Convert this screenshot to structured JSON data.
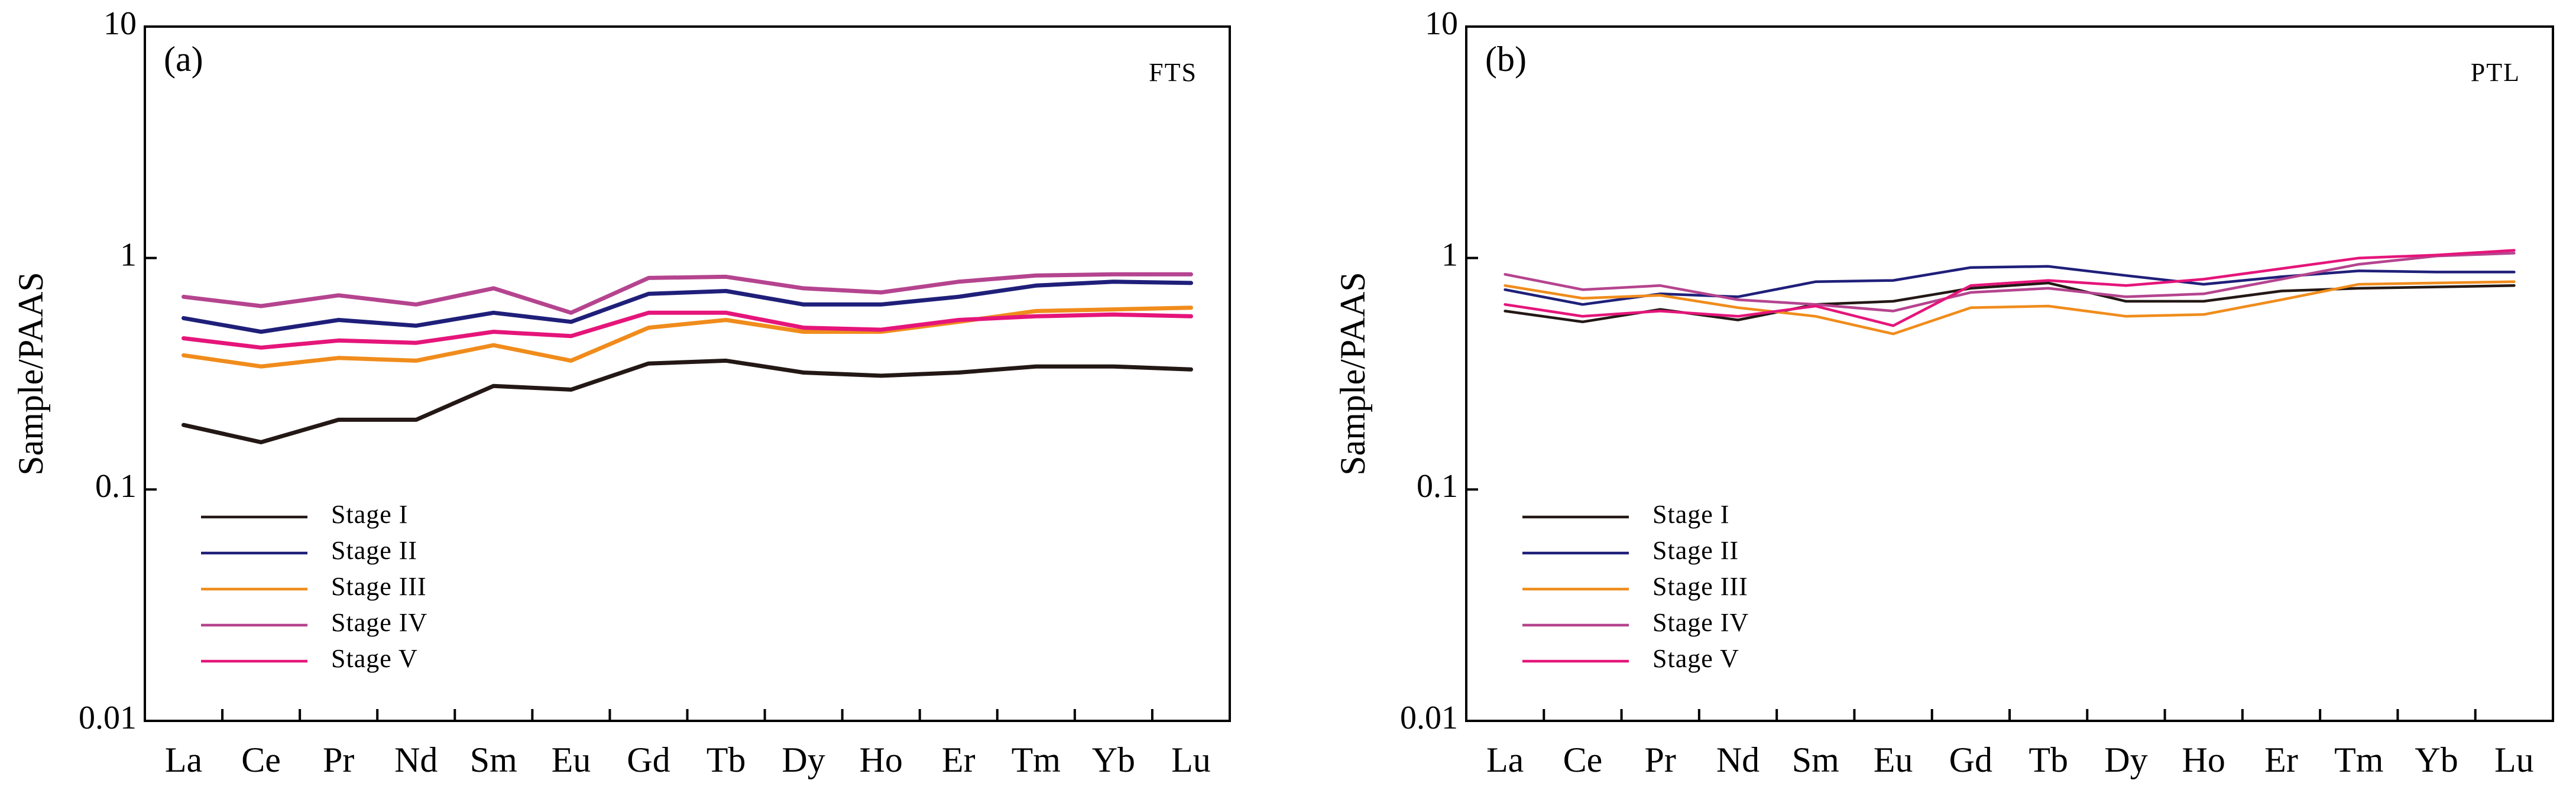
{
  "chart_data": [
    {
      "type": "line",
      "panel_label": "(a)",
      "tag": "FTS",
      "title": "",
      "xlabel": "",
      "ylabel": "Sample/PAAS",
      "yscale": "log",
      "ylim": [
        0.01,
        10
      ],
      "yticks": [
        "0.01",
        "0.1",
        "1",
        "10"
      ],
      "categories": [
        "La",
        "Ce",
        "Pr",
        "Nd",
        "Sm",
        "Eu",
        "Gd",
        "Tb",
        "Dy",
        "Ho",
        "Er",
        "Tm",
        "Yb",
        "Lu"
      ],
      "legend_position": "lower-left",
      "series": [
        {
          "name": "Stage I",
          "color": "#231815",
          "values": [
            0.19,
            0.16,
            0.2,
            0.2,
            0.28,
            0.27,
            0.35,
            0.36,
            0.32,
            0.31,
            0.32,
            0.34,
            0.34,
            0.33
          ]
        },
        {
          "name": "Stage II",
          "color": "#1f1f7a",
          "values": [
            0.55,
            0.48,
            0.54,
            0.51,
            0.58,
            0.53,
            0.7,
            0.72,
            0.63,
            0.63,
            0.68,
            0.76,
            0.79,
            0.78
          ]
        },
        {
          "name": "Stage III",
          "color": "#f08c1c",
          "values": [
            0.38,
            0.34,
            0.37,
            0.36,
            0.42,
            0.36,
            0.5,
            0.54,
            0.48,
            0.48,
            0.53,
            0.59,
            0.6,
            0.61
          ]
        },
        {
          "name": "Stage IV",
          "color": "#b5448f",
          "values": [
            0.68,
            0.62,
            0.69,
            0.63,
            0.74,
            0.58,
            0.82,
            0.83,
            0.74,
            0.71,
            0.79,
            0.84,
            0.85,
            0.85
          ]
        },
        {
          "name": "Stage V",
          "color": "#e5157a",
          "values": [
            0.45,
            0.41,
            0.44,
            0.43,
            0.48,
            0.46,
            0.58,
            0.58,
            0.5,
            0.49,
            0.54,
            0.56,
            0.57,
            0.56
          ]
        }
      ]
    },
    {
      "type": "line",
      "panel_label": "(b)",
      "tag": "PTL",
      "title": "",
      "xlabel": "",
      "ylabel": "Sample/PAAS",
      "yscale": "log",
      "ylim": [
        0.01,
        10
      ],
      "yticks": [
        "0.01",
        "0.1",
        "1",
        "10"
      ],
      "categories": [
        "La",
        "Ce",
        "Pr",
        "Nd",
        "Sm",
        "Eu",
        "Gd",
        "Tb",
        "Dy",
        "Ho",
        "Er",
        "Tm",
        "Yb",
        "Lu"
      ],
      "legend_position": "lower-left",
      "series": [
        {
          "name": "Stage I",
          "color": "#231815",
          "values": [
            0.59,
            0.53,
            0.6,
            0.54,
            0.63,
            0.65,
            0.74,
            0.78,
            0.65,
            0.65,
            0.72,
            0.74,
            0.75,
            0.76
          ]
        },
        {
          "name": "Stage II",
          "color": "#1f1f7a",
          "values": [
            0.73,
            0.63,
            0.7,
            0.68,
            0.79,
            0.8,
            0.91,
            0.92,
            0.84,
            0.77,
            0.83,
            0.88,
            0.87,
            0.87
          ]
        },
        {
          "name": "Stage III",
          "color": "#f08c1c",
          "values": [
            0.76,
            0.67,
            0.69,
            0.61,
            0.56,
            0.47,
            0.61,
            0.62,
            0.56,
            0.57,
            0.66,
            0.77,
            0.78,
            0.79
          ]
        },
        {
          "name": "Stage IV",
          "color": "#b5448f",
          "values": [
            0.85,
            0.73,
            0.76,
            0.66,
            0.63,
            0.59,
            0.71,
            0.74,
            0.68,
            0.7,
            0.81,
            0.94,
            1.02,
            1.05
          ]
        },
        {
          "name": "Stage V",
          "color": "#e5157a",
          "values": [
            0.63,
            0.56,
            0.59,
            0.56,
            0.62,
            0.51,
            0.76,
            0.8,
            0.76,
            0.81,
            0.9,
            1.0,
            1.03,
            1.08
          ]
        }
      ]
    }
  ]
}
